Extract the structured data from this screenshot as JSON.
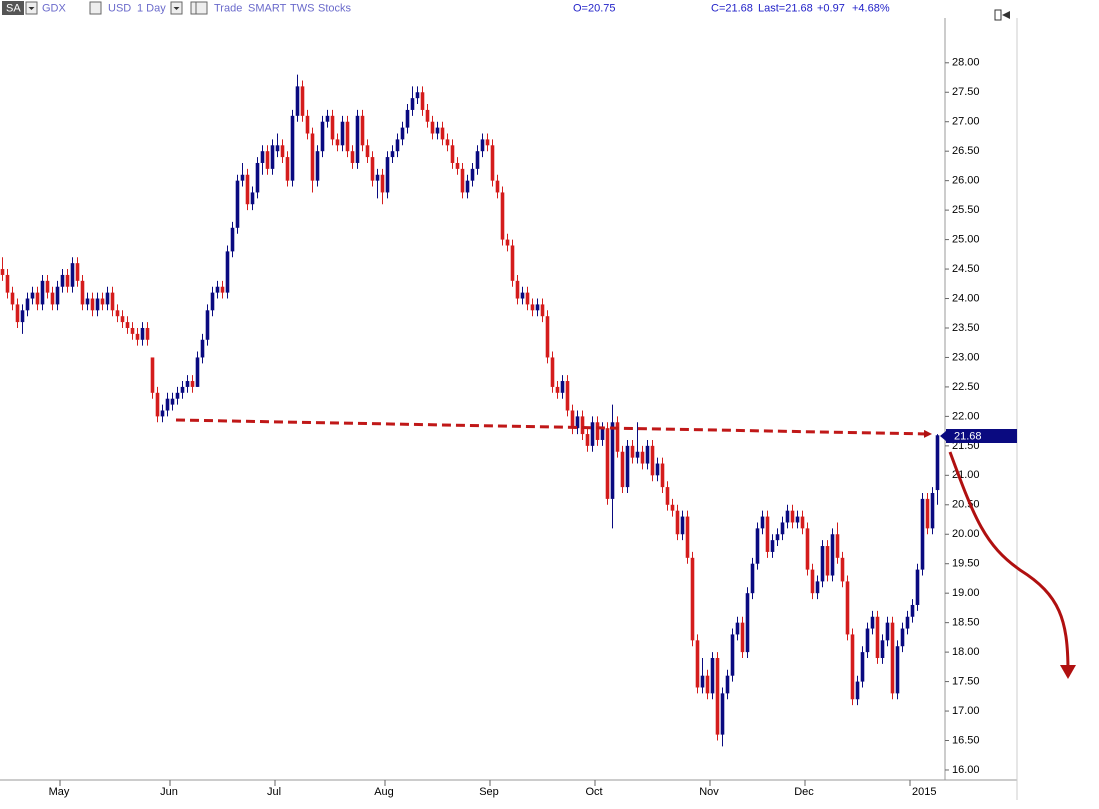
{
  "header": {
    "symbol": "SA",
    "ticker": "GDX",
    "currency": "USD",
    "period": "1 Day",
    "items": [
      "Trade",
      "SMART",
      "TWS",
      "Stocks"
    ],
    "open": "O=20.75",
    "close": "C=21.68",
    "last": "Last=21.68",
    "change": "+0.97",
    "change_pct": "+4.68%"
  },
  "chart_data": {
    "type": "candlestick",
    "up_color": "#0a0a80",
    "down_color": "#d41c1c",
    "ylim": [
      15.83,
      28.76
    ],
    "yticks": [
      {
        "value": 16,
        "label": "16.00"
      },
      {
        "value": 16.5,
        "label": "16.50"
      },
      {
        "value": 17,
        "label": "17.00"
      },
      {
        "value": 17.5,
        "label": "17.50"
      },
      {
        "value": 18,
        "label": "18.00"
      },
      {
        "value": 18.5,
        "label": "18.50"
      },
      {
        "value": 19,
        "label": "19.00"
      },
      {
        "value": 19.5,
        "label": "19.50"
      },
      {
        "value": 20,
        "label": "20.00"
      },
      {
        "value": 20.5,
        "label": "20.50"
      },
      {
        "value": 21,
        "label": "21.00"
      },
      {
        "value": 21.5,
        "label": "21.50"
      },
      {
        "value": 22,
        "label": "22.00"
      },
      {
        "value": 22.5,
        "label": "22.50"
      },
      {
        "value": 23,
        "label": "23.00"
      },
      {
        "value": 23.5,
        "label": "23.50"
      },
      {
        "value": 24,
        "label": "24.00"
      },
      {
        "value": 24.5,
        "label": "24.50"
      },
      {
        "value": 25,
        "label": "25.00"
      },
      {
        "value": 25.5,
        "label": "25.50"
      },
      {
        "value": 26,
        "label": "26.00"
      },
      {
        "value": 26.5,
        "label": "26.50"
      },
      {
        "value": 27,
        "label": "27.00"
      },
      {
        "value": 27.5,
        "label": "27.50"
      },
      {
        "value": 28,
        "label": "28.00"
      }
    ],
    "categories": [
      null,
      null,
      null,
      null,
      null,
      null,
      null,
      null,
      null,
      null,
      null,
      null,
      "May",
      null,
      null,
      null,
      null,
      null,
      null,
      null,
      null,
      null,
      null,
      null,
      null,
      null,
      null,
      null,
      null,
      null,
      null,
      null,
      null,
      null,
      "Jun",
      null,
      null,
      null,
      null,
      null,
      null,
      null,
      null,
      null,
      null,
      null,
      null,
      null,
      null,
      null,
      null,
      null,
      null,
      null,
      null,
      "Jul",
      null,
      null,
      null,
      null,
      null,
      null,
      null,
      null,
      null,
      null,
      null,
      null,
      null,
      null,
      null,
      null,
      null,
      null,
      null,
      null,
      null,
      "Aug",
      null,
      null,
      null,
      null,
      null,
      null,
      null,
      null,
      null,
      null,
      null,
      null,
      null,
      null,
      null,
      null,
      null,
      null,
      null,
      null,
      "Sep",
      null,
      null,
      null,
      null,
      null,
      null,
      null,
      null,
      null,
      null,
      null,
      null,
      null,
      null,
      null,
      null,
      null,
      null,
      null,
      null,
      "Oct",
      null,
      null,
      null,
      null,
      null,
      null,
      null,
      null,
      null,
      null,
      null,
      null,
      null,
      null,
      null,
      null,
      null,
      null,
      null,
      null,
      null,
      null,
      "Nov",
      null,
      null,
      null,
      null,
      null,
      null,
      null,
      null,
      null,
      null,
      null,
      null,
      null,
      null,
      null,
      null,
      null,
      null,
      "Dec",
      null,
      null,
      null,
      null,
      null,
      null,
      null,
      null,
      null,
      null,
      null,
      null,
      null,
      null,
      null,
      null,
      null,
      null,
      null,
      null,
      "2015",
      null,
      null,
      null,
      null,
      null
    ],
    "candles": [
      [
        24.5,
        24.7,
        24.3,
        24.4
      ],
      [
        24.4,
        24.5,
        24.0,
        24.1
      ],
      [
        24.1,
        24.2,
        23.8,
        23.9
      ],
      [
        23.9,
        24.0,
        23.5,
        23.6
      ],
      [
        23.6,
        23.9,
        23.4,
        23.8
      ],
      [
        23.8,
        24.1,
        23.7,
        24.0
      ],
      [
        24.0,
        24.2,
        23.9,
        24.1
      ],
      [
        24.1,
        24.2,
        23.8,
        23.9
      ],
      [
        23.9,
        24.4,
        23.8,
        24.3
      ],
      [
        24.3,
        24.4,
        24.0,
        24.1
      ],
      [
        24.1,
        24.2,
        23.8,
        23.9
      ],
      [
        23.9,
        24.3,
        23.8,
        24.2
      ],
      [
        24.2,
        24.5,
        24.1,
        24.4
      ],
      [
        24.4,
        24.5,
        24.1,
        24.2
      ],
      [
        24.2,
        24.7,
        24.1,
        24.6
      ],
      [
        24.6,
        24.7,
        24.2,
        24.3
      ],
      [
        24.3,
        24.4,
        23.8,
        23.9
      ],
      [
        23.9,
        24.1,
        23.8,
        24.0
      ],
      [
        24.0,
        24.1,
        23.7,
        23.8
      ],
      [
        23.8,
        24.1,
        23.7,
        24.0
      ],
      [
        24.0,
        24.1,
        23.8,
        23.9
      ],
      [
        23.9,
        24.2,
        23.8,
        24.1
      ],
      [
        24.1,
        24.2,
        23.7,
        23.8
      ],
      [
        23.8,
        23.9,
        23.6,
        23.7
      ],
      [
        23.7,
        23.8,
        23.5,
        23.6
      ],
      [
        23.6,
        23.7,
        23.4,
        23.5
      ],
      [
        23.5,
        23.6,
        23.3,
        23.4
      ],
      [
        23.4,
        23.5,
        23.2,
        23.3
      ],
      [
        23.3,
        23.6,
        23.2,
        23.5
      ],
      [
        23.5,
        23.6,
        23.2,
        23.3
      ],
      [
        23.0,
        23.0,
        22.3,
        22.4
      ],
      [
        22.4,
        22.5,
        21.9,
        22.0
      ],
      [
        22.0,
        22.2,
        21.9,
        22.1
      ],
      [
        22.1,
        22.4,
        22.0,
        22.3
      ],
      [
        22.2,
        22.4,
        22.1,
        22.3
      ],
      [
        22.3,
        22.5,
        22.2,
        22.4
      ],
      [
        22.4,
        22.6,
        22.3,
        22.5
      ],
      [
        22.5,
        22.7,
        22.4,
        22.6
      ],
      [
        22.6,
        22.7,
        22.4,
        22.5
      ],
      [
        22.5,
        23.1,
        22.5,
        23.0
      ],
      [
        23.0,
        23.4,
        22.9,
        23.3
      ],
      [
        23.3,
        23.9,
        23.2,
        23.8
      ],
      [
        23.8,
        24.2,
        23.7,
        24.1
      ],
      [
        24.1,
        24.3,
        24.0,
        24.2
      ],
      [
        24.2,
        24.3,
        24.0,
        24.1
      ],
      [
        24.1,
        24.9,
        24.0,
        24.8
      ],
      [
        24.8,
        25.3,
        24.7,
        25.2
      ],
      [
        25.2,
        26.1,
        25.1,
        26.0
      ],
      [
        26.0,
        26.3,
        25.9,
        26.1
      ],
      [
        26.1,
        26.2,
        25.5,
        25.6
      ],
      [
        25.6,
        25.9,
        25.5,
        25.8
      ],
      [
        25.8,
        26.4,
        25.7,
        26.3
      ],
      [
        26.3,
        26.6,
        26.1,
        26.5
      ],
      [
        26.5,
        26.6,
        26.1,
        26.2
      ],
      [
        26.2,
        26.7,
        26.1,
        26.6
      ],
      [
        26.5,
        26.8,
        26.4,
        26.6
      ],
      [
        26.6,
        26.7,
        26.3,
        26.4
      ],
      [
        26.4,
        26.5,
        25.9,
        26.0
      ],
      [
        26.0,
        27.2,
        25.9,
        27.1
      ],
      [
        27.1,
        27.8,
        27.0,
        27.6
      ],
      [
        27.6,
        27.7,
        27.0,
        27.1
      ],
      [
        27.1,
        27.2,
        26.7,
        26.8
      ],
      [
        26.8,
        26.9,
        25.8,
        26.0
      ],
      [
        26.0,
        26.6,
        25.9,
        26.5
      ],
      [
        26.5,
        27.1,
        26.4,
        27.0
      ],
      [
        27.0,
        27.2,
        26.9,
        27.1
      ],
      [
        27.1,
        27.2,
        26.6,
        26.7
      ],
      [
        26.7,
        26.8,
        26.5,
        26.6
      ],
      [
        26.6,
        27.1,
        26.5,
        27.0
      ],
      [
        27.0,
        27.1,
        26.4,
        26.5
      ],
      [
        26.5,
        26.6,
        26.2,
        26.3
      ],
      [
        26.3,
        27.2,
        26.2,
        27.1
      ],
      [
        27.1,
        27.2,
        26.5,
        26.6
      ],
      [
        26.6,
        26.7,
        26.3,
        26.4
      ],
      [
        26.4,
        26.5,
        25.9,
        26.0
      ],
      [
        26.0,
        26.2,
        25.7,
        26.1
      ],
      [
        26.1,
        26.2,
        25.6,
        25.8
      ],
      [
        25.8,
        26.5,
        25.7,
        26.4
      ],
      [
        26.4,
        26.6,
        26.3,
        26.5
      ],
      [
        26.5,
        26.8,
        26.4,
        26.7
      ],
      [
        26.7,
        27.0,
        26.6,
        26.9
      ],
      [
        26.9,
        27.3,
        26.8,
        27.2
      ],
      [
        27.2,
        27.6,
        27.1,
        27.4
      ],
      [
        27.4,
        27.6,
        27.3,
        27.5
      ],
      [
        27.5,
        27.6,
        27.1,
        27.2
      ],
      [
        27.2,
        27.3,
        26.9,
        27.0
      ],
      [
        27.0,
        27.1,
        26.7,
        26.8
      ],
      [
        26.8,
        27.0,
        26.7,
        26.9
      ],
      [
        26.9,
        27.0,
        26.6,
        26.7
      ],
      [
        26.7,
        26.8,
        26.5,
        26.6
      ],
      [
        26.6,
        26.7,
        26.2,
        26.3
      ],
      [
        26.3,
        26.4,
        26.1,
        26.2
      ],
      [
        26.2,
        26.3,
        25.7,
        25.8
      ],
      [
        25.8,
        26.1,
        25.7,
        26.0
      ],
      [
        26.0,
        26.3,
        25.9,
        26.2
      ],
      [
        26.2,
        26.6,
        26.1,
        26.5
      ],
      [
        26.5,
        26.8,
        26.4,
        26.7
      ],
      [
        26.7,
        26.8,
        26.5,
        26.6
      ],
      [
        26.6,
        26.7,
        25.9,
        26.0
      ],
      [
        26.0,
        26.1,
        25.7,
        25.8
      ],
      [
        25.8,
        25.9,
        24.9,
        25.0
      ],
      [
        25.0,
        25.1,
        24.8,
        24.9
      ],
      [
        24.9,
        25.0,
        24.2,
        24.3
      ],
      [
        24.3,
        24.4,
        23.9,
        24.0
      ],
      [
        24.0,
        24.2,
        23.9,
        24.1
      ],
      [
        24.1,
        24.2,
        23.8,
        23.9
      ],
      [
        23.9,
        24.0,
        23.7,
        23.8
      ],
      [
        23.8,
        24.0,
        23.7,
        23.9
      ],
      [
        23.9,
        24.0,
        23.6,
        23.7
      ],
      [
        23.7,
        23.8,
        22.9,
        23.0
      ],
      [
        23.0,
        23.1,
        22.4,
        22.5
      ],
      [
        22.5,
        22.6,
        22.3,
        22.4
      ],
      [
        22.4,
        22.7,
        22.3,
        22.6
      ],
      [
        22.6,
        22.7,
        22.0,
        22.1
      ],
      [
        22.1,
        22.2,
        21.7,
        21.8
      ],
      [
        21.8,
        22.1,
        21.7,
        22.0
      ],
      [
        22.0,
        22.1,
        21.6,
        21.7
      ],
      [
        21.7,
        21.8,
        21.4,
        21.5
      ],
      [
        21.5,
        22.0,
        21.4,
        21.9
      ],
      [
        21.9,
        22.0,
        21.5,
        21.6
      ],
      [
        21.6,
        21.9,
        21.5,
        21.8
      ],
      [
        21.8,
        21.9,
        20.5,
        20.6
      ],
      [
        20.6,
        22.2,
        20.1,
        21.9
      ],
      [
        21.9,
        22.0,
        21.3,
        21.4
      ],
      [
        21.4,
        21.5,
        20.7,
        20.8
      ],
      [
        20.8,
        21.6,
        20.7,
        21.5
      ],
      [
        21.5,
        21.6,
        21.2,
        21.3
      ],
      [
        21.3,
        21.9,
        21.2,
        21.4
      ],
      [
        21.4,
        21.5,
        21.1,
        21.2
      ],
      [
        21.2,
        21.6,
        21.1,
        21.5
      ],
      [
        21.5,
        21.6,
        20.9,
        21.0
      ],
      [
        21.0,
        21.3,
        20.9,
        21.2
      ],
      [
        21.2,
        21.3,
        20.7,
        20.8
      ],
      [
        20.8,
        20.9,
        20.4,
        20.5
      ],
      [
        20.5,
        20.6,
        20.3,
        20.4
      ],
      [
        20.4,
        20.5,
        19.9,
        20.0
      ],
      [
        20.0,
        20.4,
        19.9,
        20.3
      ],
      [
        20.3,
        20.4,
        19.5,
        19.6
      ],
      [
        19.6,
        19.7,
        18.1,
        18.2
      ],
      [
        18.2,
        18.3,
        17.3,
        17.4
      ],
      [
        17.4,
        17.9,
        17.3,
        17.6
      ],
      [
        17.6,
        17.7,
        17.2,
        17.3
      ],
      [
        17.3,
        18.0,
        17.2,
        17.9
      ],
      [
        17.9,
        18.0,
        16.5,
        16.6
      ],
      [
        16.6,
        17.4,
        16.4,
        17.3
      ],
      [
        17.3,
        17.7,
        17.2,
        17.6
      ],
      [
        17.6,
        18.4,
        17.5,
        18.3
      ],
      [
        18.3,
        18.6,
        18.2,
        18.5
      ],
      [
        18.5,
        18.6,
        17.9,
        18.0
      ],
      [
        18.0,
        19.1,
        17.9,
        19.0
      ],
      [
        19.0,
        19.6,
        18.9,
        19.5
      ],
      [
        19.5,
        20.2,
        19.4,
        20.1
      ],
      [
        20.1,
        20.4,
        20.0,
        20.3
      ],
      [
        20.3,
        20.4,
        19.6,
        19.7
      ],
      [
        19.7,
        20.0,
        19.6,
        19.9
      ],
      [
        19.9,
        20.1,
        19.8,
        20.0
      ],
      [
        20.0,
        20.3,
        19.9,
        20.2
      ],
      [
        20.2,
        20.5,
        20.1,
        20.4
      ],
      [
        20.4,
        20.5,
        20.1,
        20.2
      ],
      [
        20.2,
        20.4,
        20.1,
        20.3
      ],
      [
        20.3,
        20.4,
        20.0,
        20.1
      ],
      [
        20.1,
        20.2,
        19.3,
        19.4
      ],
      [
        19.4,
        19.5,
        18.9,
        19.0
      ],
      [
        19.0,
        19.3,
        18.9,
        19.2
      ],
      [
        19.2,
        19.9,
        19.1,
        19.8
      ],
      [
        19.8,
        19.9,
        19.2,
        19.3
      ],
      [
        19.3,
        20.1,
        19.2,
        20.0
      ],
      [
        20.0,
        20.2,
        19.5,
        19.6
      ],
      [
        19.6,
        19.7,
        19.1,
        19.2
      ],
      [
        19.2,
        19.3,
        18.2,
        18.3
      ],
      [
        18.3,
        18.4,
        17.1,
        17.2
      ],
      [
        17.2,
        17.6,
        17.1,
        17.5
      ],
      [
        17.5,
        18.1,
        17.4,
        18.0
      ],
      [
        18.0,
        18.5,
        17.9,
        18.4
      ],
      [
        18.4,
        18.7,
        18.3,
        18.6
      ],
      [
        18.6,
        18.7,
        17.8,
        17.9
      ],
      [
        17.9,
        18.3,
        17.8,
        18.2
      ],
      [
        18.2,
        18.6,
        18.1,
        18.5
      ],
      [
        18.5,
        18.6,
        17.2,
        17.3
      ],
      [
        17.3,
        18.2,
        17.2,
        18.1
      ],
      [
        18.1,
        18.5,
        18.0,
        18.4
      ],
      [
        18.4,
        18.7,
        18.3,
        18.6
      ],
      [
        18.6,
        18.9,
        18.5,
        18.8
      ],
      [
        18.8,
        19.5,
        18.7,
        19.4
      ],
      [
        19.4,
        20.7,
        19.3,
        20.6
      ],
      [
        20.6,
        20.7,
        20.0,
        20.1
      ],
      [
        20.1,
        20.8,
        20.0,
        20.7
      ],
      [
        20.75,
        21.7,
        20.5,
        21.68
      ]
    ]
  }
}
